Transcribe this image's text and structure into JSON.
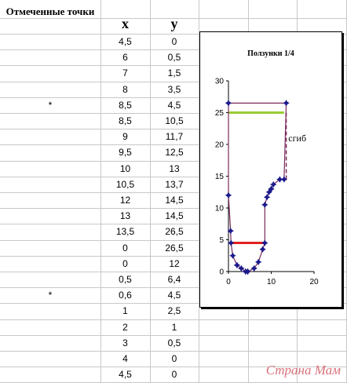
{
  "sheet": {
    "header_marked": "Отмеченные точки",
    "header_x": "x",
    "header_y": "y",
    "rows": [
      {
        "mark": "",
        "x": "4,5",
        "y": "0"
      },
      {
        "mark": "",
        "x": "6",
        "y": "0,5"
      },
      {
        "mark": "",
        "x": "7",
        "y": "1,5"
      },
      {
        "mark": "",
        "x": "8",
        "y": "3,5"
      },
      {
        "mark": "*",
        "x": "8,5",
        "y": "4,5"
      },
      {
        "mark": "",
        "x": "8,5",
        "y": "10,5"
      },
      {
        "mark": "",
        "x": "9",
        "y": "11,7"
      },
      {
        "mark": "",
        "x": "9,5",
        "y": "12,5"
      },
      {
        "mark": "",
        "x": "10",
        "y": "13"
      },
      {
        "mark": "",
        "x": "10,5",
        "y": "13,7"
      },
      {
        "mark": "",
        "x": "12",
        "y": "14,5"
      },
      {
        "mark": "",
        "x": "13",
        "y": "14,5"
      },
      {
        "mark": "",
        "x": "13,5",
        "y": "26,5"
      },
      {
        "mark": "",
        "x": "0",
        "y": "26,5"
      },
      {
        "mark": "",
        "x": "0",
        "y": "12"
      },
      {
        "mark": "",
        "x": "0,5",
        "y": "6,4"
      },
      {
        "mark": "*",
        "x": "0,6",
        "y": "4,5"
      },
      {
        "mark": "",
        "x": "1",
        "y": "2,5"
      },
      {
        "mark": "",
        "x": "2",
        "y": "1"
      },
      {
        "mark": "",
        "x": "3",
        "y": "0,5"
      },
      {
        "mark": "",
        "x": "4",
        "y": "0"
      },
      {
        "mark": "",
        "x": "4,5",
        "y": "0"
      }
    ]
  },
  "chart_data": {
    "type": "scatter",
    "title": "Ползунки 1/4",
    "xlim": [
      0,
      20
    ],
    "ylim": [
      0,
      30
    ],
    "x_ticks": [
      "0",
      "10",
      "20"
    ],
    "y_ticks": [
      "0",
      "5",
      "10",
      "15",
      "20",
      "25",
      "30"
    ],
    "series": [
      {
        "x": [
          4.5,
          6,
          7,
          8,
          8.5,
          8.5,
          9,
          9.5,
          10,
          10.5,
          12,
          13,
          13.5,
          0,
          0,
          0.5,
          0.6,
          1,
          2,
          3,
          4,
          4.5
        ],
        "y": [
          0,
          0.5,
          1.5,
          3.5,
          4.5,
          10.5,
          11.7,
          12.5,
          13,
          13.7,
          14.5,
          14.5,
          26.5,
          26.5,
          12,
          6.4,
          4.5,
          2.5,
          1,
          0.5,
          0,
          0
        ],
        "color": "#7a2a5a",
        "marker_color": "#1a1a8c"
      }
    ],
    "annotations": [
      {
        "type": "segment",
        "x": [
          0.6,
          8.5
        ],
        "y": [
          4.5,
          4.5
        ],
        "color": "#e02020"
      },
      {
        "type": "segment",
        "x": [
          0,
          13
        ],
        "y": [
          25,
          25
        ],
        "color": "#99cc33"
      },
      {
        "type": "dashed",
        "x": [
          13.5,
          13.5
        ],
        "y": [
          25,
          14.5
        ],
        "color": "#7a2a5a"
      },
      {
        "type": "text",
        "text": "сгиб",
        "x": 14,
        "y": 20.5
      }
    ]
  },
  "watermark": "Страна Мам"
}
